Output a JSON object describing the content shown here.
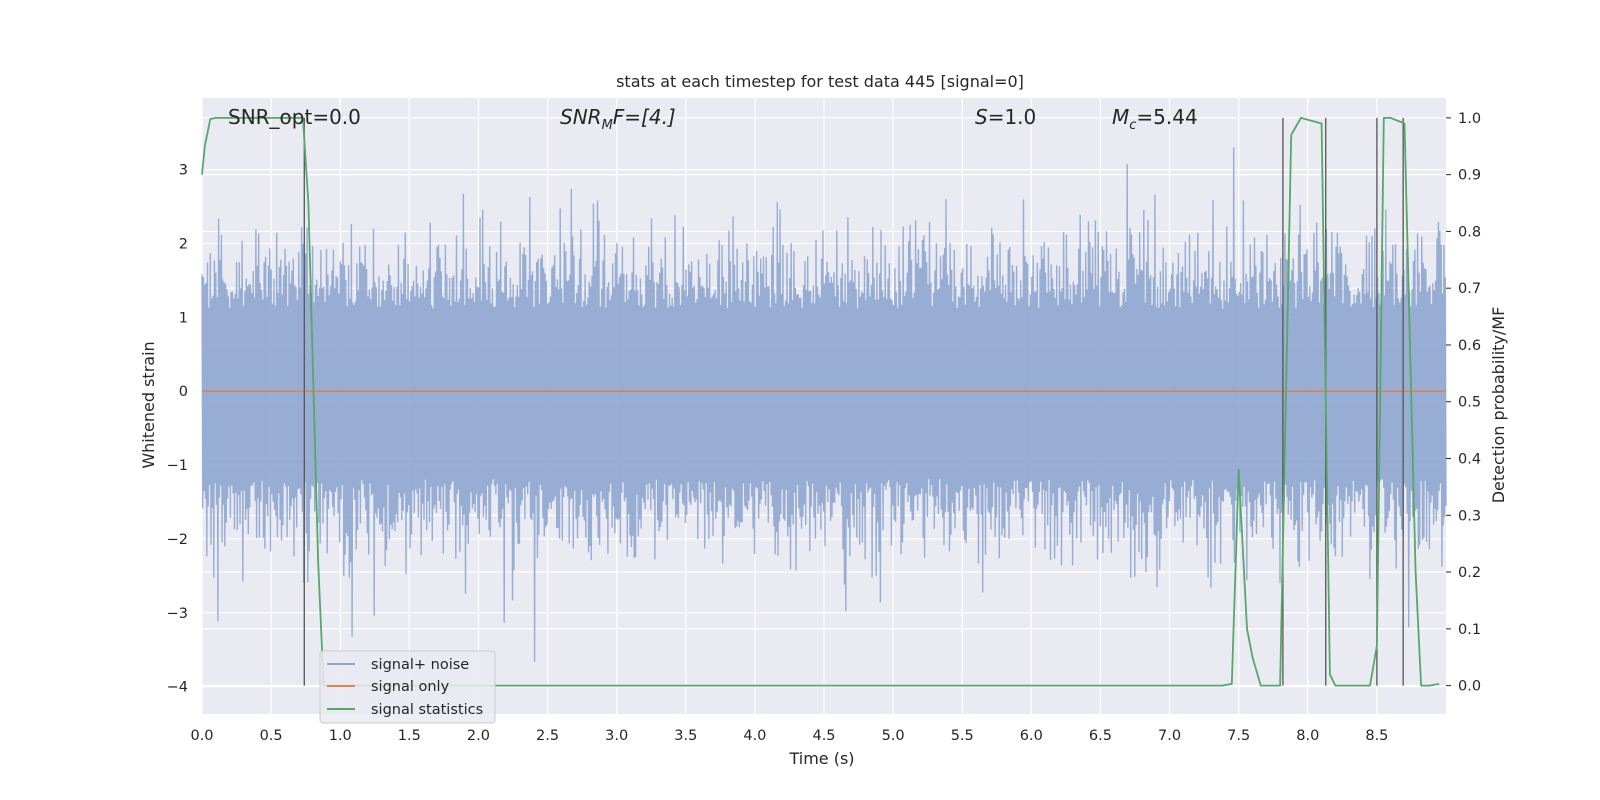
{
  "chart_data": {
    "type": "line",
    "title": "stats at each timestep for test data 445 [signal=0]",
    "xlabel": "Time (s)",
    "ylabel": "Whitened strain",
    "ylabel_right": "Detection probability/MF",
    "xlim": [
      0.0,
      9.0
    ],
    "ylim": [
      -4.37,
      3.97
    ],
    "ylim_right": [
      -0.05,
      1.035
    ],
    "x_ticks": [
      "0.0",
      "0.5",
      "1.0",
      "1.5",
      "2.0",
      "2.5",
      "3.0",
      "3.5",
      "4.0",
      "4.5",
      "5.0",
      "5.5",
      "6.0",
      "6.5",
      "7.0",
      "7.5",
      "8.0",
      "8.5"
    ],
    "y_ticks": [
      "3",
      "2",
      "1",
      "0",
      "−1",
      "−2",
      "−3",
      "−4"
    ],
    "y_ticks_right": [
      "1.0",
      "0.9",
      "0.8",
      "0.7",
      "0.6",
      "0.5",
      "0.4",
      "0.3",
      "0.2",
      "0.1",
      "0.0"
    ],
    "grid": true,
    "legend_placement": "lower-left",
    "annotations": {
      "snr_opt": "SNR_opt=0.0",
      "snr_mf_base": "SNR",
      "snr_mf_sub": "M",
      "snr_mf_rest": "F=[4.]",
      "s_var": "S",
      "s_rest": "=1.0",
      "mc_var": "M",
      "mc_sub": "c",
      "mc_rest": "=5.44"
    },
    "series": [
      {
        "name": "signal+ noise",
        "color": "#8fa6cf",
        "description": "whitened noise band",
        "x_range": [
          0.0,
          9.0
        ],
        "typical_envelope": [
          -1.7,
          1.6
        ],
        "peak_max": 3.3,
        "peak_min": -4.0
      },
      {
        "name": "signal only",
        "color": "#dd8452",
        "x": [
          0.0,
          9.0
        ],
        "y": [
          0.0,
          0.0
        ]
      },
      {
        "name": "signal statistics",
        "color": "#55a868",
        "axis": "right",
        "x": [
          0.0,
          0.02,
          0.06,
          0.1,
          0.2,
          0.5,
          0.73,
          0.77,
          0.84,
          0.88,
          0.9,
          7.38,
          7.45,
          7.5,
          7.56,
          7.6,
          7.66,
          7.8,
          7.88,
          7.95,
          8.1,
          8.16,
          8.2,
          8.25,
          8.3,
          8.45,
          8.5,
          8.55,
          8.6,
          8.7,
          8.78,
          8.82,
          8.88,
          8.95
        ],
        "y": [
          0.9,
          0.95,
          0.998,
          1.0,
          1.0,
          1.0,
          1.0,
          0.85,
          0.22,
          0.0,
          0.0,
          0.0,
          0.003,
          0.38,
          0.1,
          0.05,
          0.0,
          0.0,
          0.97,
          1.0,
          0.99,
          0.02,
          0.0,
          0.0,
          0.0,
          0.0,
          0.07,
          1.0,
          1.0,
          0.99,
          0.2,
          0.0,
          0.0,
          0.003
        ]
      }
    ],
    "vlines_x": [
      0.74,
      7.82,
      8.13,
      8.5,
      8.69
    ]
  }
}
